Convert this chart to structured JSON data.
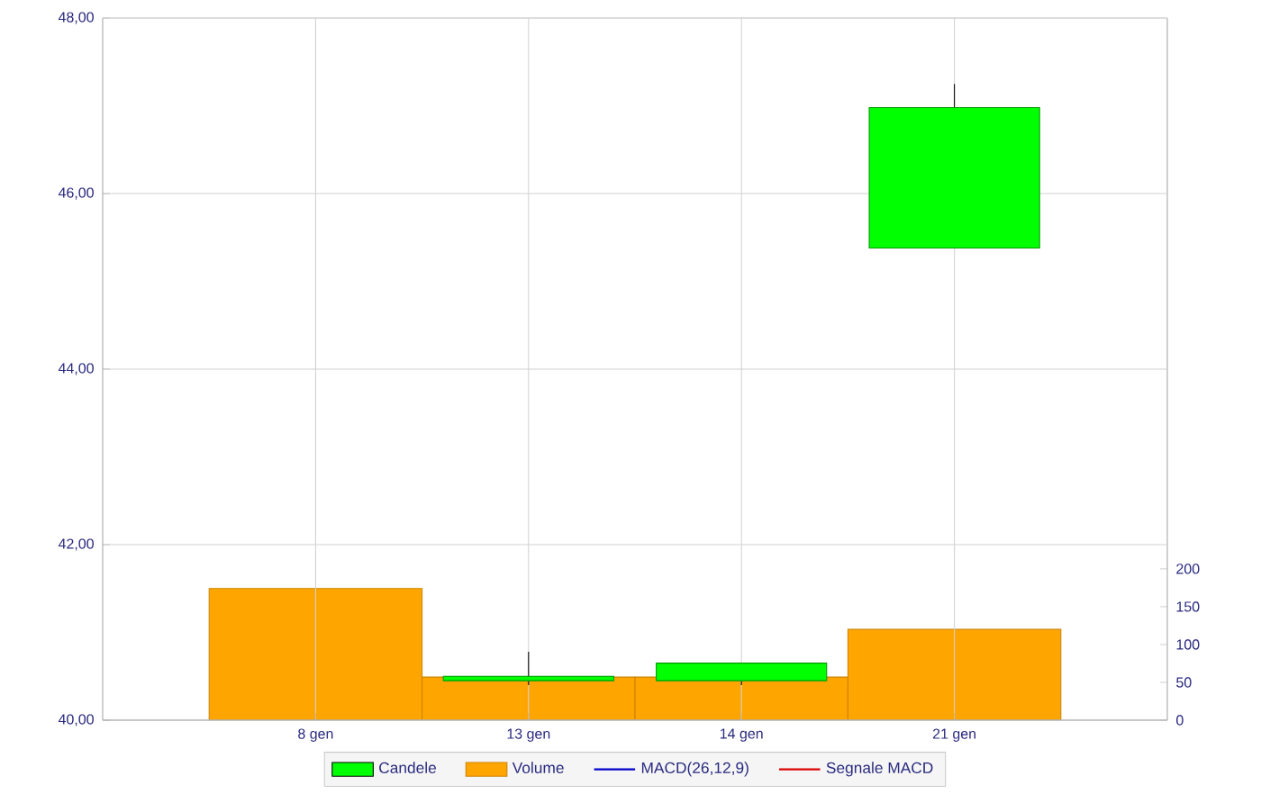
{
  "chart_data": {
    "type": "candlestick",
    "categories": [
      "8 gen",
      "13 gen",
      "14 gen",
      "21 gen"
    ],
    "ylim": [
      40,
      48
    ],
    "yticks": [
      {
        "value": 40,
        "label": "40,00"
      },
      {
        "value": 42,
        "label": "42,00"
      },
      {
        "value": 44,
        "label": "44,00"
      },
      {
        "value": 46,
        "label": "46,00"
      },
      {
        "value": 48,
        "label": "48,00"
      }
    ],
    "y2lim": [
      0,
      928
    ],
    "y2ticks": [
      0,
      50,
      100,
      150,
      200
    ],
    "grid": true,
    "legend": "bottom",
    "series": [
      {
        "name": "Candele",
        "color": "#00ff00",
        "ohlc": [
          null,
          [
            40.45,
            40.78,
            40.4,
            40.5
          ],
          [
            40.45,
            40.65,
            40.4,
            40.65
          ],
          [
            45.38,
            47.25,
            45.38,
            46.98
          ]
        ]
      },
      {
        "name": "Volume",
        "type": "bar",
        "axis": "y2",
        "color": "#ffa500",
        "values": [
          174,
          57,
          57,
          120
        ]
      },
      {
        "name": "MACD(26,12,9)",
        "type": "line",
        "color": "#0000cc",
        "values": [
          null,
          null,
          null,
          null
        ]
      },
      {
        "name": "Segnale MACD",
        "type": "line",
        "color": "#dd0000",
        "values": [
          null,
          null,
          null,
          null
        ]
      }
    ]
  }
}
